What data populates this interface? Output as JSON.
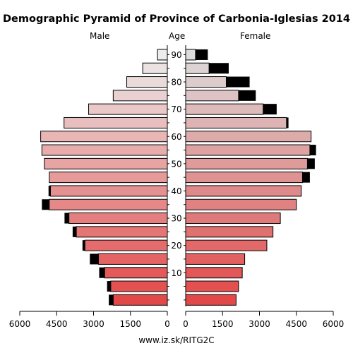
{
  "chart_data": {
    "type": "bar",
    "title": "Demographic Pyramid of Province of Carbonia-Iglesias 2014",
    "headers": {
      "left": "Male",
      "center": "Age",
      "right": "Female"
    },
    "age_axis": {
      "ticks": [
        10,
        20,
        30,
        40,
        50,
        60,
        70,
        80,
        90
      ]
    },
    "x_axis": {
      "male_ticks": [
        "6000",
        "4500",
        "3000",
        "1500",
        "0"
      ],
      "female_ticks": [
        "0",
        "1500",
        "3000",
        "4500",
        "6000"
      ],
      "xlim": [
        0,
        6000
      ]
    },
    "age_groups": [
      "0-4",
      "5-9",
      "10-14",
      "15-19",
      "20-24",
      "25-29",
      "30-34",
      "35-39",
      "40-44",
      "45-49",
      "50-54",
      "55-59",
      "60-64",
      "65-69",
      "70-74",
      "75-79",
      "80-84",
      "85-89",
      "90+"
    ],
    "series": [
      {
        "name": "Male",
        "values": [
          2200,
          2300,
          2550,
          2800,
          3350,
          3700,
          4000,
          4800,
          4750,
          4800,
          5000,
          5100,
          5150,
          4200,
          3200,
          2200,
          1650,
          1000,
          400
        ],
        "foreign": [
          180,
          150,
          220,
          350,
          100,
          150,
          180,
          300,
          80,
          0,
          0,
          0,
          0,
          0,
          0,
          0,
          0,
          0,
          0
        ]
      },
      {
        "name": "Female",
        "values": [
          2050,
          2150,
          2300,
          2400,
          3300,
          3550,
          3850,
          4500,
          4700,
          4750,
          4950,
          5050,
          5100,
          4100,
          3150,
          2150,
          1650,
          950,
          400
        ],
        "foreign": [
          0,
          0,
          0,
          0,
          0,
          0,
          0,
          0,
          0,
          300,
          300,
          250,
          0,
          80,
          550,
          700,
          950,
          800,
          500
        ]
      }
    ]
  },
  "footer": "www.iz.sk/RITG2C"
}
